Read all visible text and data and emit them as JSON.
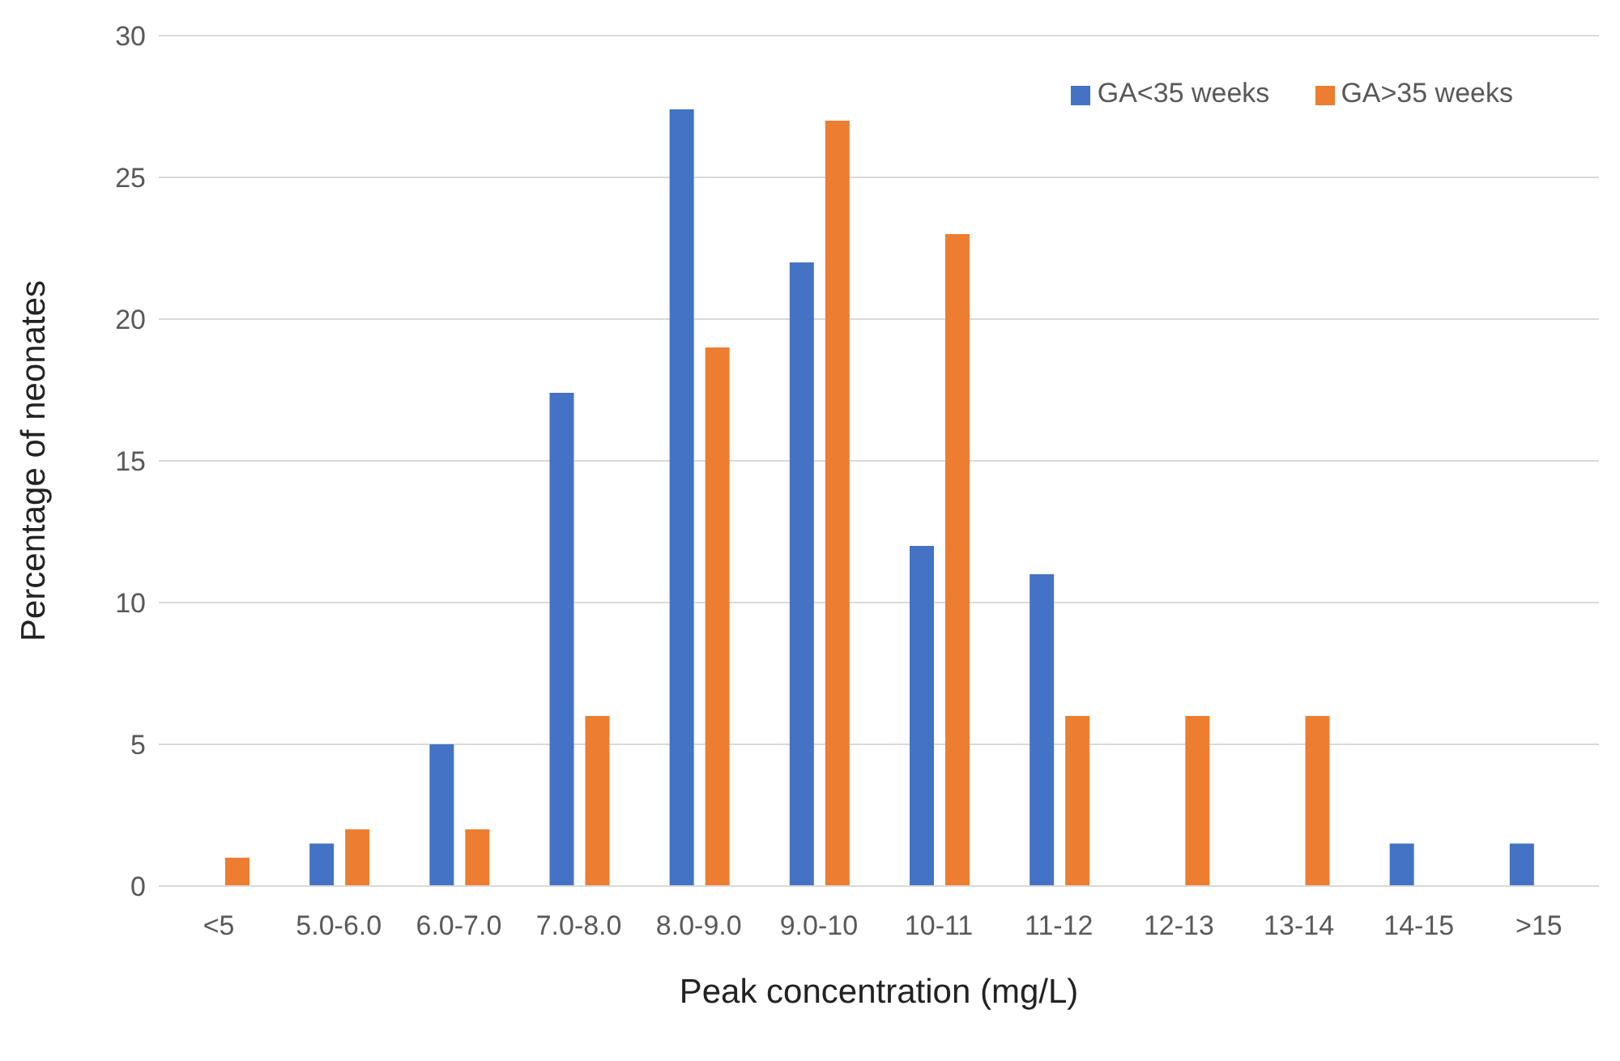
{
  "chart_data": {
    "type": "bar",
    "xlabel": "Peak concentration (mg/L)",
    "ylabel": "Percentage of neonates",
    "categories": [
      "<5",
      "5.0-6.0",
      "6.0-7.0",
      "7.0-8.0",
      "8.0-9.0",
      "9.0-10",
      "10-11",
      "11-12",
      "12-13",
      "13-14",
      "14-15",
      ">15"
    ],
    "series": [
      {
        "name": "GA<35 weeks",
        "color": "#4472c4",
        "values": [
          0,
          1.5,
          5,
          17.4,
          27.4,
          22,
          12,
          11,
          0,
          0,
          1.5,
          1.5
        ]
      },
      {
        "name": "GA>35 weeks",
        "color": "#ed7d31",
        "values": [
          1,
          2,
          2,
          6,
          19,
          27,
          23,
          6,
          6,
          6,
          0,
          0
        ]
      }
    ],
    "ylim": [
      0,
      30
    ],
    "yticks": [
      0,
      5,
      10,
      15,
      20,
      25,
      30
    ],
    "grid": "y",
    "legend": "top right"
  }
}
